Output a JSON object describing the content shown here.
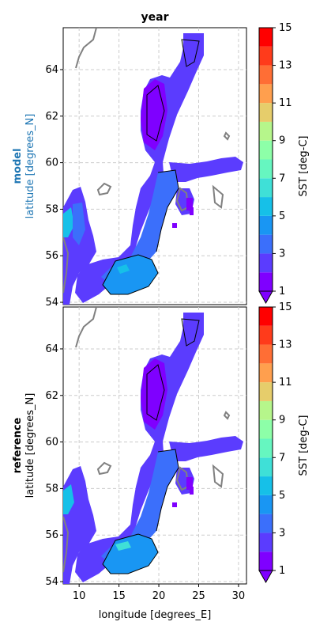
{
  "figure": {
    "title": "year",
    "panels": [
      {
        "row_label": "model",
        "ylabel": "latitude [degrees_N]",
        "label_color": "#1f77b4"
      },
      {
        "row_label": "reference",
        "ylabel": "latitude [degrees_N]",
        "label_color": "#000000"
      }
    ],
    "xlabel": "longitude [degrees_E]",
    "colorbar_label": "SST [deg-C]"
  },
  "axes": {
    "xlim": [
      8,
      31
    ],
    "ylim": [
      53.9,
      65.8
    ],
    "xticks": [
      "10",
      "15",
      "20",
      "25",
      "30"
    ],
    "yticks": [
      "54",
      "56",
      "58",
      "60",
      "62",
      "64"
    ],
    "xtick_values": [
      10,
      15,
      20,
      25,
      30
    ],
    "ytick_values": [
      54,
      56,
      58,
      60,
      62,
      64
    ]
  },
  "colorbar": {
    "levels": [
      1,
      2,
      3,
      4,
      5,
      6,
      7,
      8,
      9,
      10,
      11,
      12,
      13,
      14,
      15
    ],
    "tick_labels": [
      "1",
      "3",
      "5",
      "7",
      "9",
      "11",
      "13",
      "15"
    ],
    "colors": [
      "#7f00ff",
      "#5b3cfe",
      "#3b6ffb",
      "#1996f3",
      "#16c0e8",
      "#3fe0d7",
      "#66f6c0",
      "#8dffa8",
      "#b6f68b",
      "#e6cd6b",
      "#ff9f4e",
      "#ff6e35",
      "#ff3b1b",
      "#ff0000"
    ],
    "extend": "min"
  },
  "style": {
    "land_outline": "#808080",
    "water_deep": "#7f00ff",
    "water_mid": "#3b6ffb",
    "water_warm": "#1996f3",
    "grid": "#cccccc"
  }
}
